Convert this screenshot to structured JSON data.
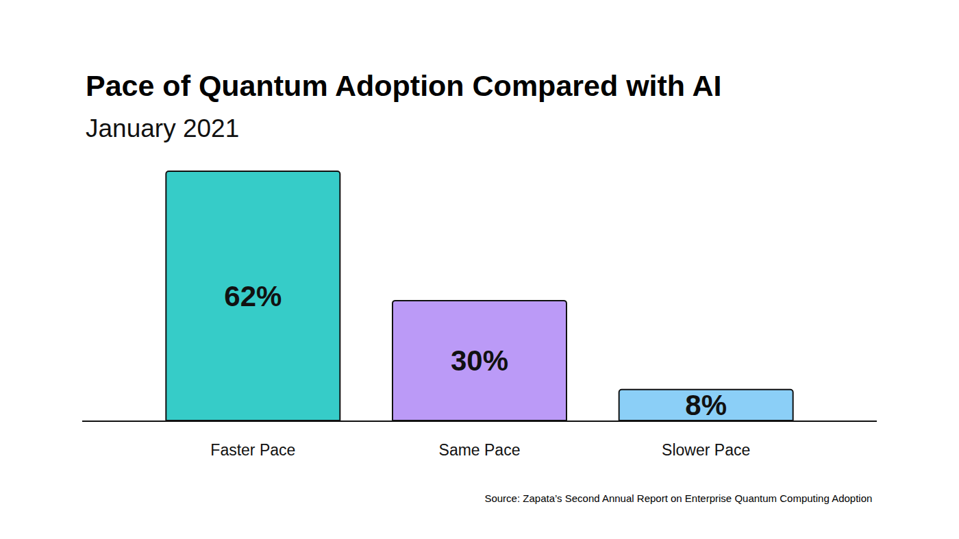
{
  "chart_data": {
    "type": "bar",
    "title": "Pace of Quantum Adoption Compared with AI",
    "subtitle": "January 2021",
    "source": "Source: Zapata’s Second Annual Report on Enterprise Quantum Computing Adoption",
    "categories": [
      "Faster Pace",
      "Same Pace",
      "Slower Pace"
    ],
    "values": [
      62,
      30,
      8
    ],
    "value_labels": [
      "62%",
      "30%",
      "8%"
    ],
    "colors": [
      "#36ccc8",
      "#bb9af7",
      "#8bcff7"
    ],
    "ylim": [
      0,
      62
    ],
    "data_labels": true,
    "tick_labels": "x"
  }
}
